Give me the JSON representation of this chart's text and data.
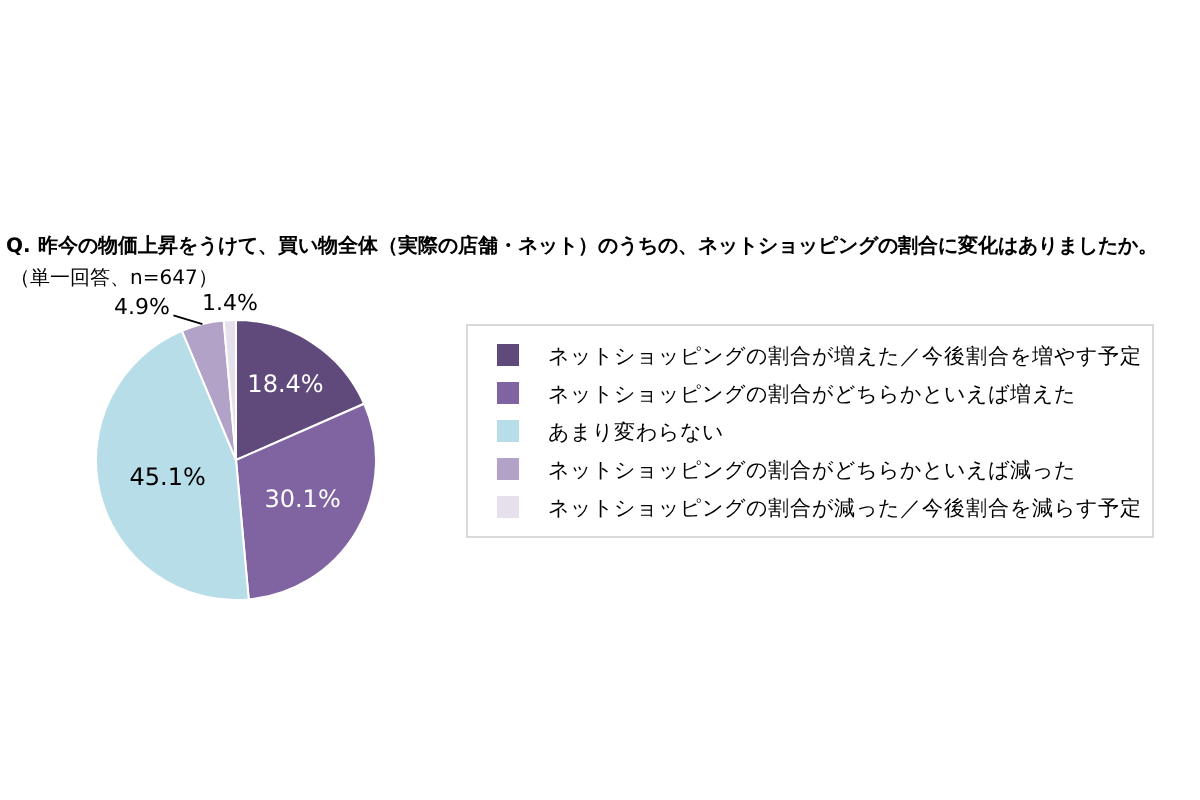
{
  "chart_data": {
    "type": "pie",
    "title": "Q. 昨今の物価上昇をうけて、買い物全体（実際の店舗・ネット）のうちの、ネットショッピングの割合に変化はありましたか。",
    "subtitle": "（単一回答、n=647）",
    "categories": [
      "ネットショッピングの割合が増えた／今後割合を増やす予定",
      "ネットショッピングの割合がどちらかといえば増えた",
      "あまり変わらない",
      "ネットショッピングの割合がどちらかといえば減った",
      "ネットショッピングの割合が減った／今後割合を減らす予定"
    ],
    "values": [
      18.4,
      30.1,
      45.1,
      4.9,
      1.4
    ],
    "value_labels": [
      "18.4%",
      "30.1%",
      "45.1%",
      "4.9%",
      "1.4%"
    ],
    "colors": [
      "#604a7b",
      "#8064a2",
      "#b7dee8",
      "#b3a2c7",
      "#e6e0ec"
    ],
    "legend": "right"
  }
}
